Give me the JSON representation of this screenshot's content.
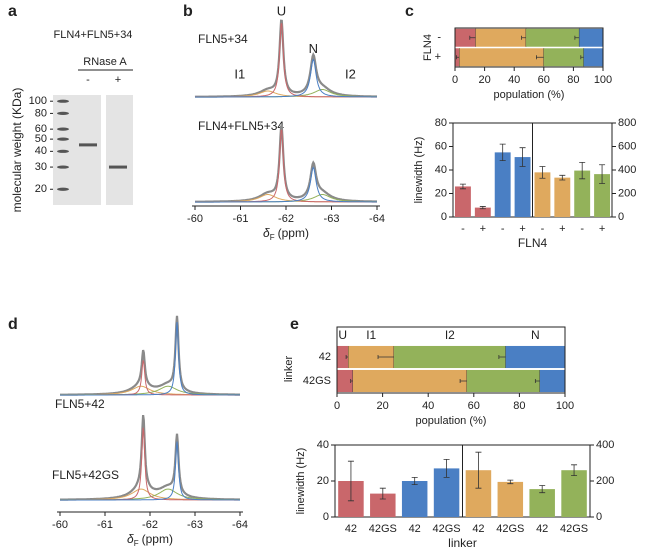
{
  "chart_data": [
    {
      "type": "gel",
      "label": "a",
      "title": "FLN4+FLN5+34",
      "treatment": "RNase A",
      "lanes": [
        "-",
        "+"
      ],
      "ylabel": "molecular weight (KDa)",
      "ylim": [
        15,
        112
      ],
      "log_scale": true,
      "yticks": [
        100,
        80,
        60,
        50,
        40,
        30,
        20
      ],
      "lane_bands": [
        45,
        30
      ]
    },
    {
      "type": "spectrum",
      "label": "b",
      "xlabel": {
        "symbol": "δ",
        "subscript": "F",
        "unit": "(ppm)"
      },
      "xlim": [
        -60,
        -64
      ],
      "xticks": [
        -60,
        -61,
        -62,
        -63,
        -64
      ],
      "spectra": [
        {
          "name": "FLN5+34",
          "components": [
            {
              "name": "I1",
              "color": "#dfa95e",
              "center": -61.6,
              "height": 0.08,
              "width": 0.45
            },
            {
              "name": "I2",
              "color": "#93b25a",
              "center": -62.8,
              "height": 0.1,
              "width": 0.45
            },
            {
              "name": "U",
              "color": "#c9676b",
              "center": -61.9,
              "height": 1.0,
              "width": 0.1
            },
            {
              "name": "N",
              "color": "#4a7fc4",
              "center": -62.6,
              "height": 0.5,
              "width": 0.15
            }
          ]
        },
        {
          "name": "FLN4+FLN5+34",
          "components": [
            {
              "color": "#dfa95e",
              "center": -61.6,
              "height": 0.1,
              "width": 0.45
            },
            {
              "color": "#93b25a",
              "center": -62.8,
              "height": 0.1,
              "width": 0.45
            },
            {
              "color": "#c9676b",
              "center": -61.9,
              "height": 0.98,
              "width": 0.1
            },
            {
              "color": "#4a7fc4",
              "center": -62.6,
              "height": 0.46,
              "width": 0.15
            }
          ]
        }
      ]
    },
    {
      "type": "stacked_hbar",
      "label": "c",
      "categories": [
        "-",
        "+"
      ],
      "ylabel": "FLN4",
      "xlabel": "population (%)",
      "xlim": [
        0,
        100
      ],
      "xticks": [
        0,
        20,
        40,
        60,
        80,
        100
      ],
      "series": [
        {
          "color": "#c9676b",
          "values": [
            14,
            3
          ],
          "errors": [
            4,
            2
          ]
        },
        {
          "color": "#dfa95e",
          "values": [
            34,
            57
          ],
          "errors": [
            3,
            5
          ]
        },
        {
          "color": "#93b25a",
          "values": [
            36,
            27
          ],
          "errors": [
            3,
            2
          ]
        },
        {
          "color": "#4a7fc4",
          "values": [
            16,
            13
          ]
        }
      ]
    },
    {
      "type": "bar",
      "categories": [
        "-",
        "+",
        "-",
        "+",
        "-",
        "+",
        "-",
        "+"
      ],
      "xlabel": "FLN4",
      "ylabel": "linewidth (Hz)",
      "ylim": [
        0,
        80
      ],
      "yticks": [
        0,
        20,
        40,
        60,
        80
      ],
      "y2lim": [
        0,
        800
      ],
      "y2ticks": [
        0,
        200,
        400,
        600,
        800
      ],
      "series": [
        {
          "color": "#c9676b",
          "values": [
            26,
            8,
            null,
            null,
            null,
            null,
            null,
            null
          ],
          "errors": [
            2,
            1,
            null,
            null,
            null,
            null,
            null,
            null
          ]
        },
        {
          "color": "#4a7fc4",
          "values": [
            null,
            null,
            55,
            51,
            null,
            null,
            null,
            null
          ],
          "errors": [
            null,
            null,
            7,
            8,
            null,
            null,
            null,
            null
          ]
        },
        {
          "color": "#dfa95e",
          "axis": "y2",
          "values": [
            null,
            null,
            null,
            null,
            380,
            335,
            null,
            null
          ],
          "errors": [
            null,
            null,
            null,
            null,
            50,
            20,
            null,
            null
          ]
        },
        {
          "color": "#93b25a",
          "axis": "y2",
          "values": [
            null,
            null,
            null,
            null,
            null,
            null,
            395,
            365
          ],
          "errors": [
            null,
            null,
            null,
            null,
            null,
            null,
            70,
            80
          ]
        }
      ]
    },
    {
      "type": "spectrum",
      "label": "d",
      "xlabel": {
        "symbol": "δ",
        "subscript": "F",
        "unit": "(ppm)"
      },
      "xlim": [
        -60,
        -64
      ],
      "xticks": [
        -60,
        -61,
        -62,
        -63,
        -64
      ],
      "spectra": [
        {
          "name": "FLN5+42",
          "components": [
            {
              "color": "#dfa95e",
              "center": -61.8,
              "height": 0.12,
              "width": 0.5
            },
            {
              "color": "#93b25a",
              "center": -62.4,
              "height": 0.12,
              "width": 0.5
            },
            {
              "color": "#c9676b",
              "center": -61.85,
              "height": 0.48,
              "width": 0.08
            },
            {
              "color": "#4a7fc4",
              "center": -62.6,
              "height": 1.0,
              "width": 0.08
            }
          ]
        },
        {
          "name": "FLN5+42GS",
          "components": [
            {
              "color": "#dfa95e",
              "center": -61.8,
              "height": 0.15,
              "width": 0.5
            },
            {
              "color": "#93b25a",
              "center": -62.4,
              "height": 0.15,
              "width": 0.5
            },
            {
              "color": "#c9676b",
              "center": -61.85,
              "height": 1.0,
              "width": 0.08
            },
            {
              "color": "#4a7fc4",
              "center": -62.6,
              "height": 0.8,
              "width": 0.08
            }
          ]
        }
      ]
    },
    {
      "type": "stacked_hbar",
      "label": "e",
      "categories": [
        "42",
        "42GS"
      ],
      "ylabel": "linker",
      "xlabel": "population (%)",
      "xlim": [
        0,
        100
      ],
      "xticks": [
        0,
        20,
        40,
        60,
        80,
        100
      ],
      "series": [
        {
          "name": "U",
          "color": "#c9676b",
          "values": [
            5,
            7
          ],
          "errors": [
            1,
            1
          ]
        },
        {
          "name": "I1",
          "color": "#dfa95e",
          "values": [
            20,
            50
          ],
          "errors": [
            7,
            3
          ]
        },
        {
          "name": "I2",
          "color": "#93b25a",
          "values": [
            49,
            32
          ],
          "errors": [
            3,
            2
          ]
        },
        {
          "name": "N",
          "color": "#4a7fc4",
          "values": [
            26,
            11
          ]
        }
      ]
    },
    {
      "type": "bar",
      "categories": [
        "42",
        "42GS",
        "42",
        "42GS",
        "42",
        "42GS",
        "42",
        "42GS"
      ],
      "xlabel": "linker",
      "ylabel": "linewidth (Hz)",
      "ylim": [
        0,
        40
      ],
      "yticks": [
        0,
        20,
        40
      ],
      "y2lim": [
        0,
        400
      ],
      "y2ticks": [
        0,
        200,
        400
      ],
      "series": [
        {
          "color": "#c9676b",
          "values": [
            20,
            13,
            null,
            null,
            null,
            null,
            null,
            null
          ],
          "errors": [
            11,
            3,
            null,
            null,
            null,
            null,
            null,
            null
          ]
        },
        {
          "color": "#4a7fc4",
          "values": [
            null,
            null,
            20,
            27,
            null,
            null,
            null,
            null
          ],
          "errors": [
            null,
            null,
            2,
            5,
            null,
            null,
            null,
            null
          ]
        },
        {
          "color": "#dfa95e",
          "axis": "y2",
          "values": [
            null,
            null,
            null,
            null,
            260,
            195,
            null,
            null
          ],
          "errors": [
            null,
            null,
            null,
            null,
            100,
            10,
            null,
            null
          ]
        },
        {
          "color": "#93b25a",
          "axis": "y2",
          "values": [
            null,
            null,
            null,
            null,
            null,
            null,
            155,
            260
          ],
          "errors": [
            null,
            null,
            null,
            null,
            null,
            null,
            20,
            30
          ]
        }
      ]
    }
  ]
}
